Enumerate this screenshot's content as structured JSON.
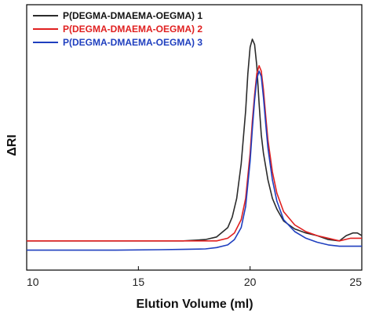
{
  "chart_data": {
    "type": "line",
    "xlabel": "Elution Volume (ml)",
    "ylabel": "ΔRI",
    "xlim": [
      10,
      25
    ],
    "ylim": [
      0,
      1
    ],
    "xticks": [
      10,
      15,
      20,
      25
    ],
    "yticks": [],
    "grid": false,
    "legend_position": "top-left",
    "series": [
      {
        "name": "P(DEGMA-DMAEMA-OEGMA) 1",
        "color": "#2b2b2b",
        "x": [
          10,
          12,
          14,
          16,
          17,
          18,
          18.5,
          19,
          19.2,
          19.4,
          19.6,
          19.8,
          19.9,
          20.0,
          20.1,
          20.2,
          20.3,
          20.4,
          20.5,
          20.6,
          20.8,
          21.0,
          21.2,
          21.5,
          22,
          22.5,
          23,
          23.5,
          24,
          24.3,
          24.6,
          24.8,
          25
        ],
        "y": [
          0.11,
          0.11,
          0.11,
          0.11,
          0.11,
          0.115,
          0.125,
          0.16,
          0.2,
          0.27,
          0.4,
          0.6,
          0.74,
          0.84,
          0.87,
          0.85,
          0.77,
          0.63,
          0.51,
          0.44,
          0.34,
          0.27,
          0.23,
          0.185,
          0.155,
          0.14,
          0.13,
          0.115,
          0.11,
          0.13,
          0.14,
          0.14,
          0.13
        ]
      },
      {
        "name": "P(DEGMA-DMAEMA-OEGMA) 2",
        "color": "#e02020",
        "x": [
          10,
          12,
          14,
          16,
          17,
          18,
          18.5,
          19,
          19.3,
          19.6,
          19.8,
          20.0,
          20.1,
          20.2,
          20.3,
          20.4,
          20.5,
          20.6,
          20.7,
          20.8,
          21.0,
          21.2,
          21.5,
          22,
          22.5,
          23,
          23.5,
          24,
          24.5,
          25
        ],
        "y": [
          0.11,
          0.11,
          0.11,
          0.11,
          0.11,
          0.11,
          0.11,
          0.12,
          0.14,
          0.19,
          0.27,
          0.44,
          0.56,
          0.66,
          0.74,
          0.77,
          0.75,
          0.68,
          0.58,
          0.49,
          0.37,
          0.29,
          0.22,
          0.17,
          0.145,
          0.13,
          0.12,
          0.11,
          0.12,
          0.12
        ]
      },
      {
        "name": "P(DEGMA-DMAEMA-OEGMA) 3",
        "color": "#1f3fbf",
        "x": [
          10,
          12,
          14,
          16,
          17,
          18,
          18.5,
          19,
          19.3,
          19.6,
          19.8,
          20.0,
          20.1,
          20.2,
          20.3,
          20.4,
          20.5,
          20.6,
          20.7,
          20.8,
          21.0,
          21.2,
          21.5,
          22,
          22.5,
          23,
          23.5,
          24,
          24.5,
          25
        ],
        "y": [
          0.075,
          0.075,
          0.075,
          0.077,
          0.078,
          0.08,
          0.085,
          0.095,
          0.115,
          0.16,
          0.24,
          0.41,
          0.53,
          0.64,
          0.72,
          0.75,
          0.73,
          0.65,
          0.55,
          0.46,
          0.34,
          0.26,
          0.19,
          0.145,
          0.12,
          0.105,
          0.095,
          0.09,
          0.09,
          0.09
        ]
      }
    ]
  }
}
